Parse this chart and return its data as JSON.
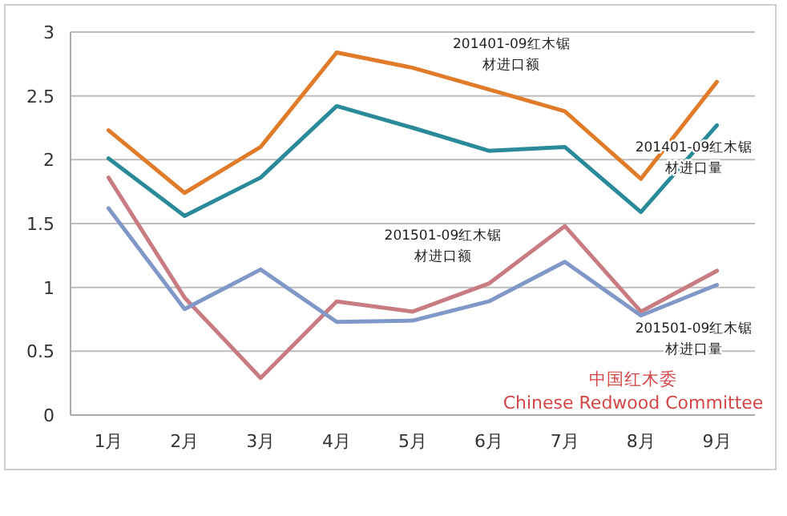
{
  "chart_data": {
    "type": "line",
    "categories": [
      "1月",
      "2月",
      "3月",
      "4月",
      "5月",
      "6月",
      "7月",
      "8月",
      "9月"
    ],
    "series": [
      {
        "name": "201401-09红木锯材进口额",
        "color": "#e07b2a",
        "values": [
          2.23,
          1.74,
          2.1,
          2.84,
          2.72,
          2.55,
          2.38,
          1.85,
          2.61
        ]
      },
      {
        "name": "201401-09红木锯材进口量",
        "color": "#2a8a9a",
        "values": [
          2.01,
          1.56,
          1.86,
          2.42,
          2.25,
          2.07,
          2.1,
          1.59,
          2.27
        ]
      },
      {
        "name": "201501-09红木锯材进口额",
        "color": "#c87b80",
        "values": [
          1.86,
          0.92,
          0.29,
          0.89,
          0.81,
          1.03,
          1.48,
          0.81,
          1.13
        ]
      },
      {
        "name": "201501-09红木锯材进口量",
        "color": "#8098c8",
        "values": [
          1.62,
          0.83,
          1.14,
          0.73,
          0.74,
          0.89,
          1.2,
          0.78,
          1.02
        ]
      }
    ],
    "ylim": [
      0,
      3
    ],
    "yticks": [
      0,
      0.5,
      1,
      1.5,
      2,
      2.5,
      3
    ],
    "grid": "y",
    "marker": "none",
    "line_style": "solid",
    "annotations": [
      "中国红木委",
      "Chinese Redwood Committee"
    ]
  }
}
